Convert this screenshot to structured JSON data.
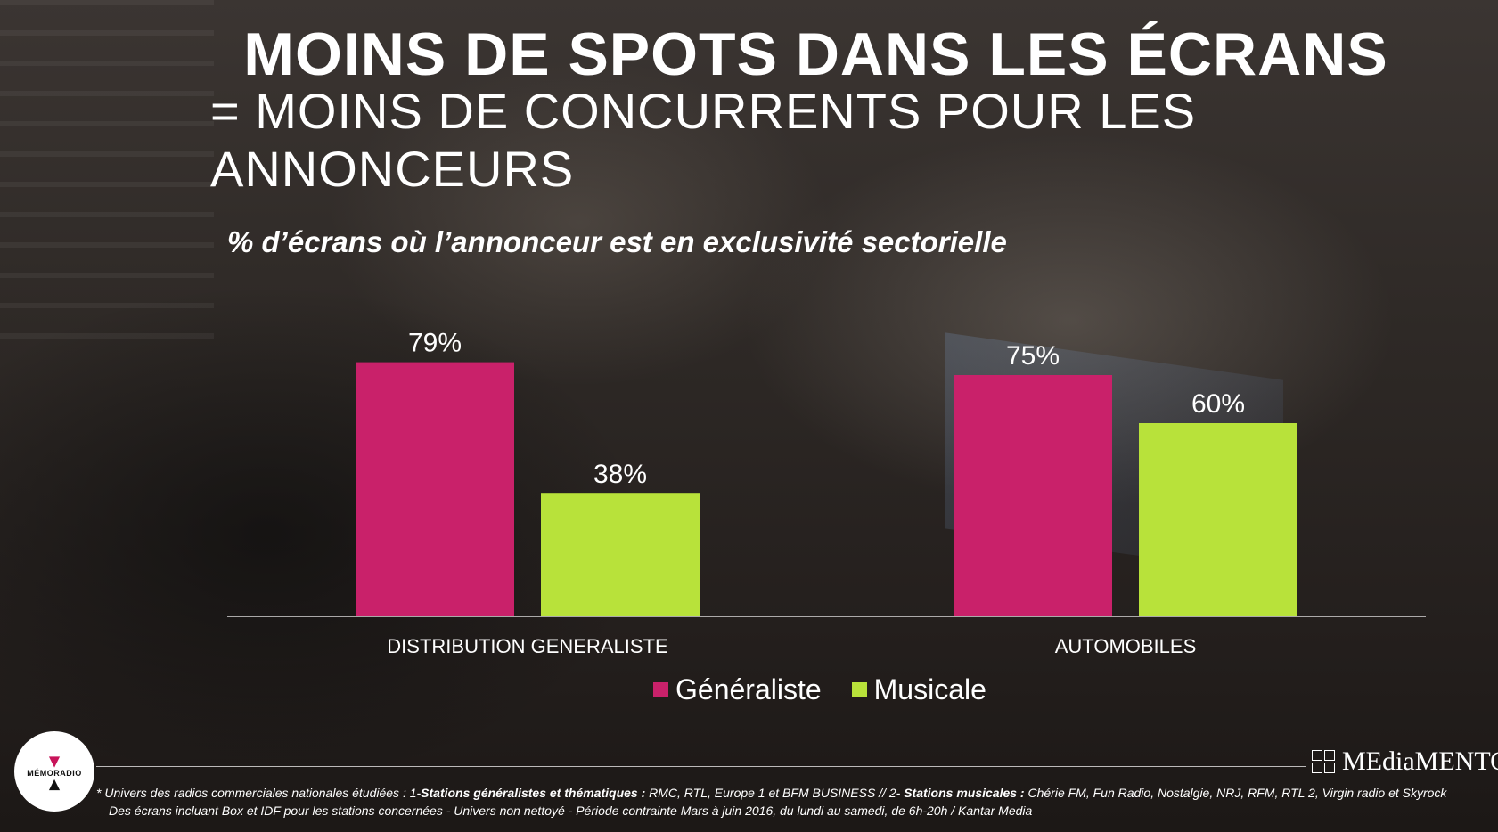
{
  "slide": {
    "title_line1": "MOINS DE SPOTS DANS LES ÉCRANS",
    "title_line2": "= MOINS DE CONCURRENTS POUR LES ANNONCEURS"
  },
  "chart_data": {
    "type": "bar",
    "title": "% d’écrans où l’annonceur est en exclusivité sectorielle",
    "categories": [
      "DISTRIBUTION GENERALISTE",
      "AUTOMOBILES"
    ],
    "series": [
      {
        "name": "Généraliste",
        "values": [
          79,
          75
        ],
        "labels": [
          "79%",
          "75%"
        ],
        "color": "#c9216a"
      },
      {
        "name": "Musicale",
        "values": [
          38,
          60
        ],
        "labels": [
          "38%",
          "60%"
        ],
        "color": "#b8e23a"
      }
    ],
    "ylim": [
      0,
      100
    ],
    "grid": false,
    "legend": "bottom"
  },
  "footer": {
    "note_line1_a": "* Univers des radios commerciales nationales étudiées : 1-",
    "note_line1_b": "Stations généralistes et thématiques :",
    "note_line1_c": " RMC, RTL, Europe 1 et BFM BUSINESS // 2- ",
    "note_line1_d": "Stations musicales :",
    "note_line1_e": " Chérie FM, Fun Radio, Nostalgie, NRJ, RFM, RTL 2, Virgin radio et Skyrock",
    "note_line2": "Des écrans incluant Box et IDF pour les stations concernées - Univers non nettoyé - Période contrainte Mars à juin 2016, du lundi au samedi, de 6h-20h / Kantar Media",
    "logo_left": "MÉMORADIO",
    "logo_right": "MEdiaMENTO"
  }
}
